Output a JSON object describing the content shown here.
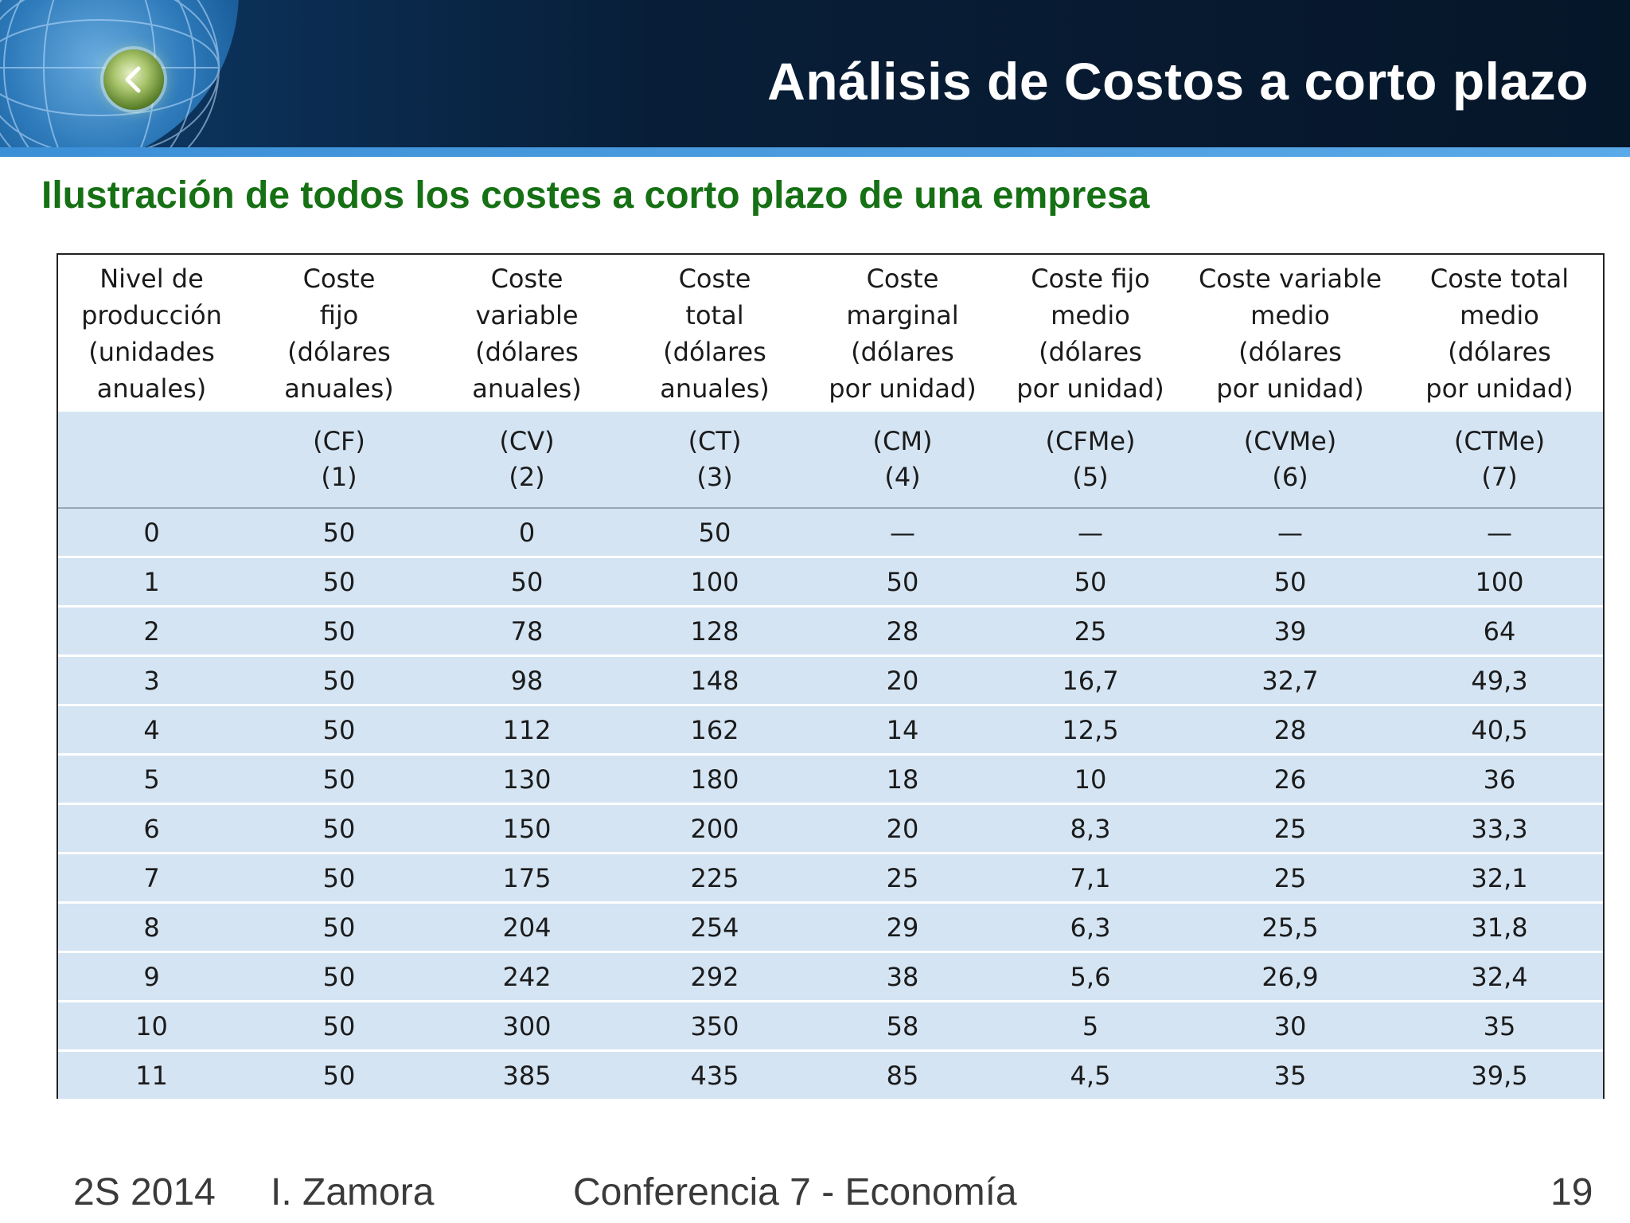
{
  "header": {
    "title": "Análisis de Costos a corto plazo"
  },
  "subtitle": "Ilustración de todos los costes a corto plazo de una empresa",
  "table": {
    "headers": [
      [
        "Nivel de",
        "producción",
        "(unidades",
        "anuales)"
      ],
      [
        "Coste",
        "fijo",
        "(dólares",
        "anuales)"
      ],
      [
        "Coste",
        "variable",
        "(dólares",
        "anuales)"
      ],
      [
        "Coste",
        "total",
        "(dólares",
        "anuales)"
      ],
      [
        "Coste",
        "marginal",
        "(dólares",
        "por unidad)"
      ],
      [
        "Coste fijo",
        "medio",
        "(dólares",
        "por unidad)"
      ],
      [
        "Coste variable",
        "medio",
        "(dólares",
        "por unidad)"
      ],
      [
        "Coste total",
        "medio",
        "(dólares",
        "por unidad)"
      ]
    ],
    "symbols": [
      [
        "",
        ""
      ],
      [
        "(CF)",
        "(1)"
      ],
      [
        "(CV)",
        "(2)"
      ],
      [
        "(CT)",
        "(3)"
      ],
      [
        "(CM)",
        "(4)"
      ],
      [
        "(CFMe)",
        "(5)"
      ],
      [
        "(CVMe)",
        "(6)"
      ],
      [
        "(CTMe)",
        "(7)"
      ]
    ],
    "rows": [
      [
        "0",
        "50",
        "0",
        "50",
        "—",
        "—",
        "—",
        "—"
      ],
      [
        "1",
        "50",
        "50",
        "100",
        "50",
        "50",
        "50",
        "100"
      ],
      [
        "2",
        "50",
        "78",
        "128",
        "28",
        "25",
        "39",
        "64"
      ],
      [
        "3",
        "50",
        "98",
        "148",
        "20",
        "16,7",
        "32,7",
        "49,3"
      ],
      [
        "4",
        "50",
        "112",
        "162",
        "14",
        "12,5",
        "28",
        "40,5"
      ],
      [
        "5",
        "50",
        "130",
        "180",
        "18",
        "10",
        "26",
        "36"
      ],
      [
        "6",
        "50",
        "150",
        "200",
        "20",
        "8,3",
        "25",
        "33,3"
      ],
      [
        "7",
        "50",
        "175",
        "225",
        "25",
        "7,1",
        "25",
        "32,1"
      ],
      [
        "8",
        "50",
        "204",
        "254",
        "29",
        "6,3",
        "25,5",
        "31,8"
      ],
      [
        "9",
        "50",
        "242",
        "292",
        "38",
        "5,6",
        "26,9",
        "32,4"
      ],
      [
        "10",
        "50",
        "300",
        "350",
        "58",
        "5",
        "30",
        "35"
      ],
      [
        "11",
        "50",
        "385",
        "435",
        "85",
        "4,5",
        "35",
        "39,5"
      ]
    ]
  },
  "footer": {
    "semester": "2S 2014",
    "author": "I. Zamora",
    "course": "Conferencia 7 - Economía",
    "page": "19"
  }
}
